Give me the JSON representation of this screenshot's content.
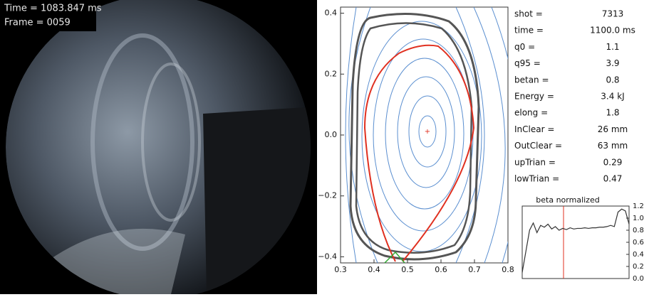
{
  "camera": {
    "time_label": "Time = 1083.847 ms",
    "frame_label": "Frame = 0059"
  },
  "chart_data": [
    {
      "type": "contour",
      "xlim": [
        0.3,
        0.8
      ],
      "xticks": [
        0.3,
        0.4,
        0.5,
        0.6,
        0.7,
        0.8
      ],
      "ylim": [
        -0.42,
        0.42
      ],
      "yticks": [
        {
          "value": -0.4,
          "label": "−0.4"
        },
        {
          "value": -0.2,
          "label": "−0.2"
        },
        {
          "value": 0,
          "label": "0.0"
        },
        0.2,
        0.4
      ]
    },
    {
      "type": "line",
      "title": "beta normalized",
      "color": "#333333",
      "values": [
        0.1,
        0.45,
        0.8,
        0.92,
        0.76,
        0.88,
        0.85,
        0.9,
        0.82,
        0.86,
        0.8,
        0.83,
        0.81,
        0.84,
        0.82,
        0.83,
        0.83,
        0.84,
        0.83,
        0.84,
        0.84,
        0.85,
        0.85,
        0.86,
        0.88,
        0.86,
        1.1,
        1.15,
        1.12,
        0.9
      ],
      "ylim": [
        0,
        1.2
      ],
      "yticks": [
        {
          "value": 0,
          "label": "0.0"
        },
        0.2,
        0.4,
        0.6,
        0.8,
        {
          "value": 1,
          "label": "1.0"
        },
        1.2
      ]
    }
  ],
  "params": {
    "rows": [
      [
        "shot =",
        "7313"
      ],
      [
        "time =",
        "1100.0 ms"
      ],
      [
        "q0 =",
        "1.1"
      ],
      [
        "q95 =",
        "3.9"
      ],
      [
        "betan =",
        "0.8"
      ],
      [
        "Energy =",
        "3.4 kJ"
      ],
      [
        "elong =",
        "1.8"
      ],
      [
        "InClear =",
        "26 mm"
      ],
      [
        "OutClear =",
        "63 mm"
      ],
      [
        "upTrian =",
        "0.29"
      ],
      [
        "lowTrian =",
        "0.47"
      ]
    ]
  }
}
